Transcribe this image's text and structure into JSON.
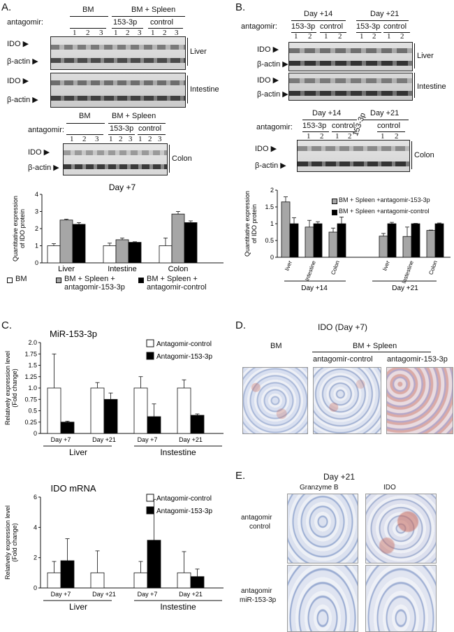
{
  "panelA": {
    "label": "A.",
    "lane_header_left": "BM",
    "lane_header_right": "BM + Spleen",
    "antagomir_label": "antagomir:",
    "group_labels": [
      "153-3p",
      "control"
    ],
    "lane_numbers": [
      "1",
      "2",
      "3",
      "1",
      "2",
      "3",
      "1",
      "2",
      "3"
    ],
    "blot_labels": [
      "IDO ▶",
      "β-actin ▶",
      "IDO ▶",
      "β-actin ▶"
    ],
    "tissues": [
      "Liver",
      "Intestine",
      "Colon"
    ],
    "colon_header_left": "BM",
    "colon_header_right": "BM + Spleen",
    "colon_groups": [
      "153-3p",
      "control"
    ],
    "colon_lanes": [
      "1",
      "2",
      "3",
      "1",
      "2",
      "3",
      "1",
      "2",
      "3"
    ],
    "colon_blot_labels": [
      "IDO ▶",
      "β-actin ▶"
    ],
    "legend": [
      "BM",
      "BM + Spleen + antagomir-153-3p",
      "BM + Spleen + antagomir-control"
    ]
  },
  "panelB": {
    "label": "B.",
    "day14": "Day +14",
    "day21": "Day +21",
    "antagomir_label": "antagomir:",
    "groups": [
      "153-3p",
      "control",
      "153-3p",
      "control"
    ],
    "lanes": [
      "1",
      "2",
      "1",
      "2",
      "1",
      "2",
      "1",
      "2"
    ],
    "blot_labels": [
      "IDO ▶",
      "β-actin ▶",
      "IDO ▶",
      "β-actin ▶"
    ],
    "tissues": [
      "Liver",
      "Intestine",
      "Colon"
    ],
    "colon_groups": [
      "153-3p",
      "control",
      "153-3p",
      "control"
    ],
    "colon_lanes": [
      "1",
      "2",
      "1",
      "2"
    ],
    "colon_blot_labels": [
      "IDO ▶",
      "β-actin ▶"
    ],
    "colon_day14": "Day +14",
    "colon_day21": "Day +21",
    "legend": [
      "BM + Spleen +antagomir-153-3p",
      "BM + Spleen +antagomir-control"
    ]
  },
  "panelC": {
    "label": "C."
  },
  "panelD": {
    "label": "D.",
    "title": "IDO (Day +7)",
    "col_bm": "BM",
    "col_group": "BM + Spleen",
    "col_ctrl": "antagomir-control",
    "col_153": "antagomir-153-3p"
  },
  "panelE": {
    "label": "E.",
    "title": "Day +21",
    "col1": "Granzyme B",
    "col2": "IDO",
    "row1": [
      "antagomir",
      "control"
    ],
    "row2": [
      "antagomir",
      "miR-153-3p"
    ]
  },
  "colors": {
    "white_bar": "#ffffff",
    "grey_bar": "#a6a6a6",
    "black_bar": "#000000",
    "stain_blue": "#8fa6cf",
    "stain_red": "#c76a5c"
  },
  "chart_data": [
    {
      "id": "A-day7",
      "type": "bar",
      "title": "Day +7",
      "ylabel": "Quantitative expression of IDO protein",
      "categories": [
        "Liver",
        "Intestine",
        "Colon"
      ],
      "ylim": [
        0,
        4
      ],
      "yticks": [
        0,
        1,
        2,
        3,
        4
      ],
      "series": [
        {
          "name": "BM",
          "values": [
            1.0,
            1.0,
            1.0
          ],
          "errors": [
            0.12,
            0.15,
            0.45
          ],
          "color": "#ffffff"
        },
        {
          "name": "BM + Spleen + antagomir-153-3p",
          "values": [
            2.5,
            1.35,
            2.85
          ],
          "errors": [
            0.05,
            0.1,
            0.15
          ],
          "color": "#a6a6a6"
        },
        {
          "name": "BM + Spleen + antagomir-control",
          "values": [
            2.25,
            1.2,
            2.35
          ],
          "errors": [
            0.1,
            0.03,
            0.1
          ],
          "color": "#000000"
        }
      ]
    },
    {
      "id": "B-day14-21",
      "type": "bar",
      "ylabel": "Quantitative expression of IDO protein",
      "categories": [
        "liver",
        "Intestine",
        "Colon",
        "liver",
        "Instestine",
        "Colon"
      ],
      "groups": [
        "Day +14",
        "Day +21"
      ],
      "ylim": [
        0,
        2
      ],
      "yticks": [
        0,
        0.5,
        1,
        1.5,
        2
      ],
      "series": [
        {
          "name": "BM + Spleen +antagomir-153-3p",
          "values": [
            1.65,
            0.9,
            0.75,
            0.63,
            0.62,
            0.8
          ],
          "errors": [
            0.15,
            0.2,
            0.12,
            0.08,
            0.28,
            0.01
          ],
          "color": "#a6a6a6"
        },
        {
          "name": "BM + Spleen +antagomir-control",
          "values": [
            1.0,
            1.0,
            1.0,
            1.0,
            1.0,
            1.0
          ],
          "errors": [
            0.18,
            0.06,
            0.2,
            0.04,
            0.01,
            0.02
          ],
          "color": "#000000"
        }
      ]
    },
    {
      "id": "C-mir",
      "type": "bar",
      "title": "MiR-153-3p",
      "ylabel": "Relatively expression level (Fold change)",
      "categories": [
        "Day +7",
        "Day +21",
        "Day +7",
        "Day +21"
      ],
      "groups": [
        "Liver",
        "Instestine"
      ],
      "ylim": [
        0,
        2
      ],
      "yticks": [
        0,
        0.25,
        0.5,
        0.75,
        1.0,
        1.25,
        1.5,
        1.75,
        2.0
      ],
      "ytick_labels": [
        "0",
        "0.25",
        "0.5",
        "0.75",
        "1.0",
        "1.25",
        "1.5",
        "1.75",
        "2.0"
      ],
      "series": [
        {
          "name": "Antagomir-control",
          "values": [
            1.0,
            1.0,
            1.0,
            1.0
          ],
          "errors": [
            0.75,
            0.12,
            0.25,
            0.18
          ],
          "color": "#ffffff"
        },
        {
          "name": "Antagomir-153-3p",
          "values": [
            0.25,
            0.75,
            0.37,
            0.4
          ],
          "errors": [
            0.02,
            0.14,
            0.28,
            0.03
          ],
          "color": "#000000"
        }
      ]
    },
    {
      "id": "C-mrna",
      "type": "bar",
      "title": "IDO mRNA",
      "ylabel": "Relatively expression level (Fold change)",
      "categories": [
        "Day +7",
        "Day +21",
        "Day +7",
        "Day +21"
      ],
      "groups": [
        "Liver",
        "Instestine"
      ],
      "ylim": [
        0,
        6
      ],
      "yticks": [
        0,
        2,
        4,
        6
      ],
      "series": [
        {
          "name": "Antagomir-control",
          "values": [
            1.0,
            1.0,
            1.0,
            1.0
          ],
          "errors": [
            0.75,
            1.45,
            0.75,
            1.4
          ],
          "color": "#ffffff"
        },
        {
          "name": "Antagomir-153-3p",
          "values": [
            1.8,
            0.0,
            3.15,
            0.75
          ],
          "errors": [
            1.45,
            0.0,
            2.7,
            0.5
          ],
          "color": "#000000"
        }
      ]
    }
  ]
}
